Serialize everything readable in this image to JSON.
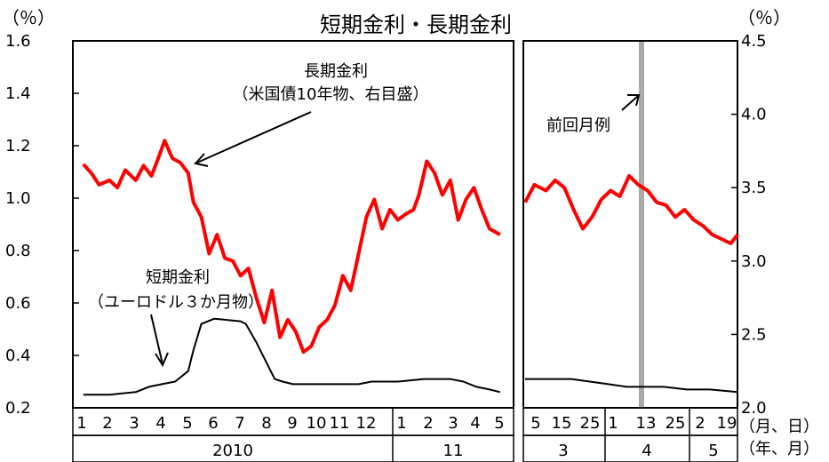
{
  "chart_data": {
    "type": "line",
    "title": "短期金利・長期金利",
    "left_unit": "（％）",
    "right_unit": "（％）",
    "left_axis": {
      "ticks": [
        "1.6",
        "1.4",
        "1.2",
        "1.0",
        "0.8",
        "0.6",
        "0.4",
        "0.2"
      ],
      "range": [
        0.2,
        1.6
      ]
    },
    "right_axis": {
      "ticks": [
        "4.5",
        "4.0",
        "3.5",
        "3.0",
        "2.5",
        "2.0"
      ],
      "range": [
        2.0,
        4.5
      ]
    },
    "colors": {
      "long": "#ff0000",
      "short": "#000000",
      "prev_month": "#aaaaaa"
    },
    "annotations": {
      "long_name": "長期金利",
      "long_note": "（米国債10年物、右目盛）",
      "short_name": "短期金利",
      "short_note": "（ユーロドル３か月物）",
      "prev_month": "前回月例"
    },
    "x_left": {
      "months": [
        "1",
        "2",
        "3",
        "4",
        "5",
        "6",
        "7",
        "8",
        "9",
        "10",
        "11",
        "12",
        "1",
        "2",
        "3",
        "4",
        "5"
      ],
      "years": [
        "2010",
        "11"
      ]
    },
    "x_right": {
      "days": [
        "5",
        "15",
        "25",
        "1",
        "13",
        "25",
        "2",
        "19"
      ],
      "months": [
        "3",
        "4",
        "5"
      ]
    },
    "x_unit_day": "（月、日）",
    "x_unit_year": "（年、月）",
    "series_monthly": [
      {
        "name": "長期金利",
        "axis": "right",
        "x": [
          1.0,
          1.3,
          1.6,
          2.0,
          2.3,
          2.6,
          3.0,
          3.3,
          3.6,
          3.9,
          4.1,
          4.4,
          4.7,
          5.0,
          5.2,
          5.5,
          5.8,
          6.1,
          6.4,
          6.7,
          7.0,
          7.3,
          7.6,
          7.9,
          8.2,
          8.5,
          8.8,
          9.1,
          9.4,
          9.7,
          10.0,
          10.3,
          10.6,
          10.9,
          11.2,
          11.5,
          11.8,
          12.1,
          12.4,
          12.7,
          13.0,
          13.3,
          13.6,
          13.8,
          14.1,
          14.4,
          14.7,
          15.0,
          15.3,
          15.6,
          15.9,
          16.2,
          16.5,
          16.9
        ],
        "values": [
          3.66,
          3.6,
          3.52,
          3.55,
          3.5,
          3.62,
          3.55,
          3.65,
          3.58,
          3.72,
          3.82,
          3.7,
          3.67,
          3.6,
          3.4,
          3.3,
          3.05,
          3.18,
          3.02,
          3.0,
          2.9,
          2.95,
          2.75,
          2.58,
          2.8,
          2.48,
          2.6,
          2.52,
          2.38,
          2.42,
          2.55,
          2.6,
          2.7,
          2.9,
          2.8,
          3.05,
          3.3,
          3.42,
          3.22,
          3.35,
          3.28,
          3.32,
          3.35,
          3.45,
          3.68,
          3.6,
          3.45,
          3.55,
          3.28,
          3.42,
          3.5,
          3.35,
          3.22,
          3.18
        ]
      },
      {
        "name": "短期金利",
        "axis": "left",
        "x": [
          1.0,
          2.0,
          3.0,
          3.5,
          4.0,
          4.5,
          5.0,
          5.2,
          5.5,
          6.0,
          7.0,
          7.2,
          7.6,
          8.0,
          8.3,
          8.6,
          9.0,
          10.0,
          11.0,
          11.5,
          12.0,
          13.0,
          14.0,
          15.0,
          15.5,
          16.0,
          16.5,
          16.9
        ],
        "values": [
          0.25,
          0.25,
          0.26,
          0.28,
          0.29,
          0.3,
          0.34,
          0.42,
          0.52,
          0.54,
          0.53,
          0.52,
          0.45,
          0.37,
          0.31,
          0.3,
          0.29,
          0.29,
          0.29,
          0.29,
          0.3,
          0.3,
          0.31,
          0.31,
          0.3,
          0.28,
          0.27,
          0.26
        ]
      }
    ],
    "series_daily": [
      {
        "name": "長期金利",
        "axis": "right",
        "x": [
          0,
          4,
          9,
          13,
          17,
          21,
          25,
          29,
          33,
          37,
          41,
          45,
          49,
          53,
          57,
          61,
          65,
          69,
          73,
          77,
          81,
          85,
          89,
          92
        ],
        "values": [
          3.4,
          3.52,
          3.48,
          3.55,
          3.5,
          3.35,
          3.22,
          3.3,
          3.42,
          3.48,
          3.44,
          3.58,
          3.52,
          3.48,
          3.4,
          3.38,
          3.3,
          3.35,
          3.28,
          3.24,
          3.18,
          3.15,
          3.12,
          3.18
        ]
      },
      {
        "name": "短期金利",
        "axis": "left",
        "x": [
          0,
          10,
          20,
          28,
          36,
          44,
          52,
          60,
          70,
          80,
          92
        ],
        "values": [
          0.31,
          0.31,
          0.31,
          0.3,
          0.29,
          0.28,
          0.28,
          0.28,
          0.27,
          0.27,
          0.26
        ]
      }
    ]
  }
}
